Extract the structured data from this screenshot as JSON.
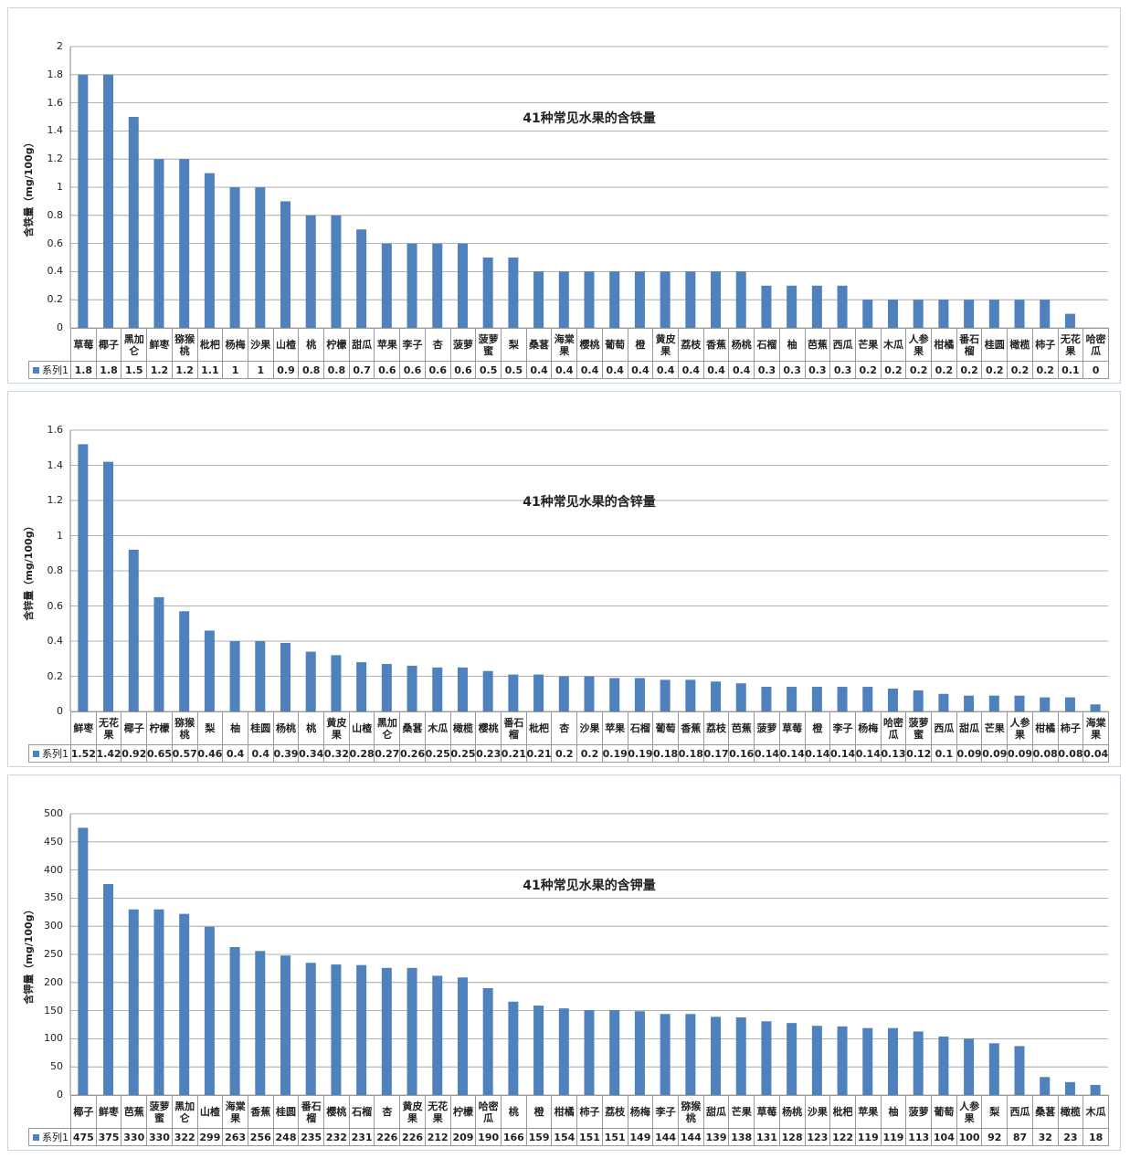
{
  "chart_data": [
    {
      "type": "bar",
      "title": "41种常见水果的含铁量",
      "y_label": "含铁量（mg/100g）",
      "categories": [
        "草莓",
        "椰子",
        "黑加仑",
        "鲜枣",
        "猕猴桃",
        "枇杷",
        "杨梅",
        "沙果",
        "山楂",
        "桃",
        "柠檬",
        "甜瓜",
        "苹果",
        "李子",
        "杏",
        "菠萝",
        "菠萝蜜",
        "梨",
        "桑葚",
        "海棠果",
        "樱桃",
        "葡萄",
        "橙",
        "黄皮果",
        "荔枝",
        "香蕉",
        "杨桃",
        "石榴",
        "柚",
        "芭蕉",
        "西瓜",
        "芒果",
        "木瓜",
        "人参果",
        "柑橘",
        "番石榴",
        "桂圆",
        "橄榄",
        "柿子",
        "无花果",
        "哈密瓜"
      ],
      "series": [
        {
          "name": "系列1",
          "color": "#4f81bd",
          "values": [
            1.8,
            1.8,
            1.5,
            1.2,
            1.2,
            1.1,
            1,
            1,
            0.9,
            0.8,
            0.8,
            0.7,
            0.6,
            0.6,
            0.6,
            0.6,
            0.5,
            0.5,
            0.4,
            0.4,
            0.4,
            0.4,
            0.4,
            0.4,
            0.4,
            0.4,
            0.4,
            0.3,
            0.3,
            0.3,
            0.3,
            0.2,
            0.2,
            0.2,
            0.2,
            0.2,
            0.2,
            0.2,
            0.2,
            0.1,
            0
          ]
        }
      ],
      "ylim": [
        0,
        2
      ],
      "yticks": [
        0,
        0.2,
        0.4,
        0.6,
        0.8,
        1,
        1.2,
        1.4,
        1.6,
        1.8,
        2
      ],
      "grid": true
    },
    {
      "type": "bar",
      "title": "41种常见水果的含锌量",
      "y_label": "含锌量（mg/100g）",
      "categories": [
        "鲜枣",
        "无花果",
        "椰子",
        "柠檬",
        "猕猴桃",
        "梨",
        "柚",
        "桂圆",
        "杨桃",
        "桃",
        "黄皮果",
        "山楂",
        "黑加仑",
        "桑葚",
        "木瓜",
        "橄榄",
        "樱桃",
        "番石榴",
        "枇杷",
        "杏",
        "沙果",
        "苹果",
        "石榴",
        "葡萄",
        "香蕉",
        "荔枝",
        "芭蕉",
        "菠萝",
        "草莓",
        "橙",
        "李子",
        "杨梅",
        "哈密瓜",
        "菠萝蜜",
        "西瓜",
        "甜瓜",
        "芒果",
        "人参果",
        "柑橘",
        "柿子",
        "海棠果"
      ],
      "series": [
        {
          "name": "系列1",
          "color": "#4f81bd",
          "values": [
            1.52,
            1.42,
            0.92,
            0.65,
            0.57,
            0.46,
            0.4,
            0.4,
            0.39,
            0.34,
            0.32,
            0.28,
            0.27,
            0.26,
            0.25,
            0.25,
            0.23,
            0.21,
            0.21,
            0.2,
            0.2,
            0.19,
            0.19,
            0.18,
            0.18,
            0.17,
            0.16,
            0.14,
            0.14,
            0.14,
            0.14,
            0.14,
            0.13,
            0.12,
            0.1,
            0.09,
            0.09,
            0.09,
            0.08,
            0.08,
            0.04
          ]
        }
      ],
      "ylim": [
        0,
        1.6
      ],
      "yticks": [
        0,
        0.2,
        0.4,
        0.6,
        0.8,
        1,
        1.2,
        1.4,
        1.6
      ],
      "grid": true
    },
    {
      "type": "bar",
      "title": "41种常见水果的含钾量",
      "y_label": "含钾量（mg/100g）",
      "categories": [
        "椰子",
        "鲜枣",
        "芭蕉",
        "菠萝蜜",
        "黑加仑",
        "山楂",
        "海棠果",
        "香蕉",
        "桂圆",
        "番石榴",
        "樱桃",
        "石榴",
        "杏",
        "黄皮果",
        "无花果",
        "柠檬",
        "哈密瓜",
        "桃",
        "橙",
        "柑橘",
        "柿子",
        "荔枝",
        "杨梅",
        "李子",
        "猕猴桃",
        "甜瓜",
        "芒果",
        "草莓",
        "杨桃",
        "沙果",
        "枇杷",
        "苹果",
        "柚",
        "菠萝",
        "葡萄",
        "人参果",
        "梨",
        "西瓜",
        "桑葚",
        "橄榄",
        "木瓜"
      ],
      "series": [
        {
          "name": "系列1",
          "color": "#4f81bd",
          "values": [
            475,
            375,
            330,
            330,
            322,
            299,
            263,
            256,
            248,
            235,
            232,
            231,
            226,
            226,
            212,
            209,
            190,
            166,
            159,
            154,
            151,
            151,
            149,
            144,
            144,
            139,
            138,
            131,
            128,
            123,
            122,
            119,
            119,
            113,
            104,
            100,
            92,
            87,
            32,
            23,
            18
          ]
        }
      ],
      "ylim": [
        0,
        500
      ],
      "yticks": [
        0,
        50,
        100,
        150,
        200,
        250,
        300,
        350,
        400,
        450,
        500
      ],
      "grid": true
    }
  ]
}
